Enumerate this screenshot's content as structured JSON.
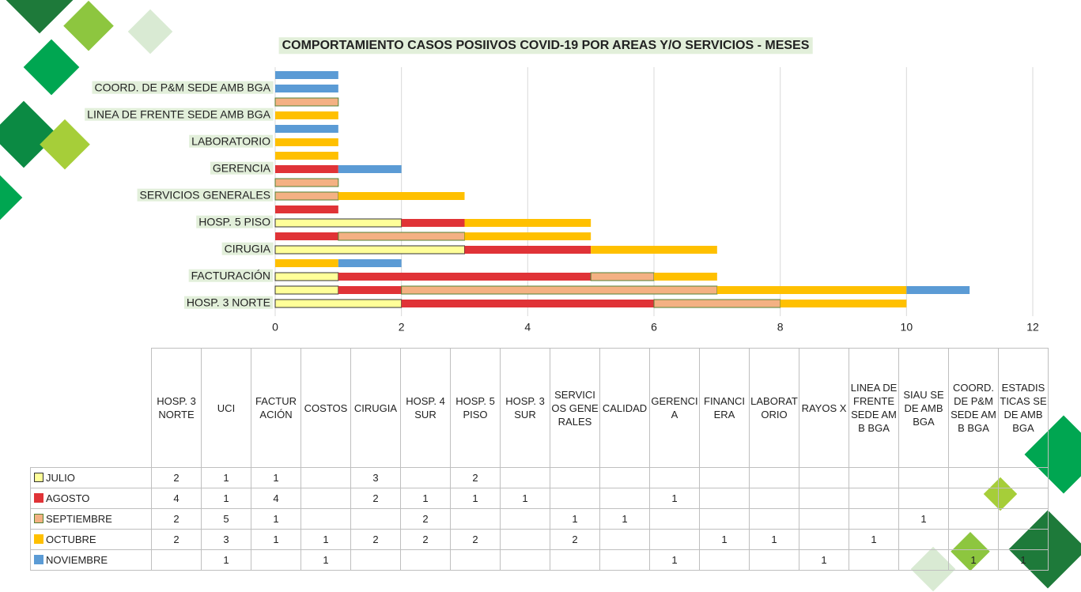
{
  "chart_data": {
    "type": "stacked_barh",
    "title": "COMPORTAMIENTO CASOS POSIIVOS COVID-19 POR AREAS Y/O SERVICIOS - MESES",
    "categories": [
      "HOSP. 3 NORTE",
      "UCI",
      "FACTURACIÓN",
      "COSTOS",
      "CIRUGIA",
      "HOSP. 4 SUR",
      "HOSP. 5 PISO",
      "HOSP. 3 SUR",
      "SERVICIOS GENERALES",
      "CALIDAD",
      "GERENCIA",
      "FINANCIERA",
      "LABORATORIO",
      "RAYOS X",
      "LINEA DE FRENTE SEDE AMB BGA",
      "SIAU SEDE AMB BGA",
      "COORD. DE P&M SEDE AMB BGA",
      "ESTADISTICAS SEDE AMB BGA"
    ],
    "series": [
      {
        "name": "JULIO",
        "color": "#ffff99",
        "values": [
          2,
          1,
          1,
          null,
          3,
          null,
          2,
          null,
          null,
          null,
          null,
          null,
          null,
          null,
          null,
          null,
          null,
          null
        ]
      },
      {
        "name": "AGOSTO",
        "color": "#e03337",
        "values": [
          4,
          1,
          4,
          null,
          2,
          1,
          1,
          1,
          null,
          null,
          1,
          null,
          null,
          null,
          null,
          null,
          null,
          null
        ]
      },
      {
        "name": "SEPTIEMBRE",
        "color": "#f4b183",
        "values": [
          2,
          5,
          1,
          null,
          null,
          2,
          null,
          null,
          1,
          1,
          null,
          null,
          null,
          null,
          null,
          1,
          null,
          null
        ]
      },
      {
        "name": "OCTUBRE",
        "color": "#ffc000",
        "values": [
          2,
          3,
          1,
          1,
          2,
          2,
          2,
          null,
          2,
          null,
          null,
          1,
          1,
          null,
          1,
          null,
          null,
          null
        ]
      },
      {
        "name": "NOVIEMBRE",
        "color": "#5b9bd5",
        "values": [
          null,
          1,
          null,
          1,
          null,
          null,
          null,
          null,
          null,
          null,
          1,
          null,
          null,
          1,
          null,
          null,
          1,
          1
        ]
      }
    ],
    "xlim": [
      0,
      12
    ],
    "xticks": [
      0,
      2,
      4,
      6,
      8,
      10,
      12
    ],
    "grid": true
  }
}
